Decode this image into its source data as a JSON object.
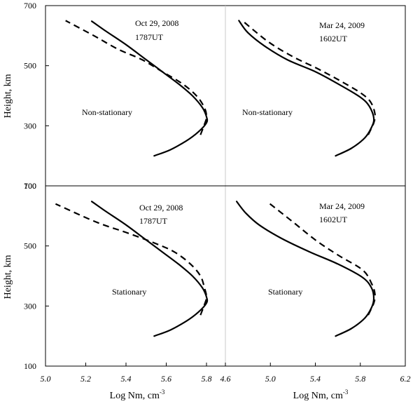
{
  "chart_data": [
    {
      "type": "line",
      "panel": "top-left",
      "annotations": {
        "date": "Oct 29, 2008",
        "time": "1787UT",
        "mode": "Non-stationary"
      },
      "xlim": [
        5.0,
        5.86
      ],
      "ylim": [
        100,
        700
      ],
      "series": [
        {
          "name": "solid",
          "style": "solid",
          "points": [
            [
              5.54,
              200
            ],
            [
              5.62,
              220
            ],
            [
              5.7,
              250
            ],
            [
              5.76,
              280
            ],
            [
              5.8,
              310
            ],
            [
              5.8,
              330
            ],
            [
              5.78,
              360
            ],
            [
              5.73,
              400
            ],
            [
              5.66,
              440
            ],
            [
              5.58,
              480
            ],
            [
              5.5,
              520
            ],
            [
              5.4,
              570
            ],
            [
              5.3,
              615
            ],
            [
              5.23,
              648
            ]
          ]
        },
        {
          "name": "dashed",
          "style": "dashed",
          "points": [
            [
              5.77,
              270
            ],
            [
              5.79,
              305
            ],
            [
              5.8,
              330
            ],
            [
              5.79,
              360
            ],
            [
              5.75,
              400
            ],
            [
              5.68,
              440
            ],
            [
              5.58,
              480
            ],
            [
              5.48,
              520
            ],
            [
              5.36,
              555
            ],
            [
              5.24,
              600
            ],
            [
              5.1,
              650
            ]
          ]
        }
      ]
    },
    {
      "type": "line",
      "panel": "top-right",
      "annotations": {
        "date": "Mar 24, 2009",
        "time": "1602UT",
        "mode": "Non-stationary"
      },
      "xlim": [
        4.6,
        6.2
      ],
      "ylim": [
        100,
        700
      ],
      "series": [
        {
          "name": "solid",
          "style": "solid",
          "points": [
            [
              5.58,
              200
            ],
            [
              5.72,
              225
            ],
            [
              5.84,
              260
            ],
            [
              5.9,
              295
            ],
            [
              5.92,
              325
            ],
            [
              5.88,
              365
            ],
            [
              5.8,
              395
            ],
            [
              5.6,
              440
            ],
            [
              5.4,
              480
            ],
            [
              5.15,
              520
            ],
            [
              4.95,
              565
            ],
            [
              4.8,
              610
            ],
            [
              4.72,
              650
            ]
          ]
        },
        {
          "name": "dashed",
          "style": "dashed",
          "points": [
            [
              5.87,
              270
            ],
            [
              5.92,
              310
            ],
            [
              5.93,
              340
            ],
            [
              5.89,
              380
            ],
            [
              5.8,
              410
            ],
            [
              5.62,
              450
            ],
            [
              5.42,
              490
            ],
            [
              5.2,
              530
            ],
            [
              4.98,
              580
            ],
            [
              4.75,
              650
            ]
          ]
        }
      ]
    },
    {
      "type": "line",
      "panel": "bottom-left",
      "annotations": {
        "date": "Oct 29, 2008",
        "time": "1787UT",
        "mode": "Stationary"
      },
      "xlim": [
        5.0,
        5.86
      ],
      "ylim": [
        100,
        700
      ],
      "series": [
        {
          "name": "solid",
          "style": "solid",
          "points": [
            [
              5.54,
              200
            ],
            [
              5.62,
              220
            ],
            [
              5.7,
              250
            ],
            [
              5.76,
              280
            ],
            [
              5.8,
              310
            ],
            [
              5.8,
              330
            ],
            [
              5.78,
              360
            ],
            [
              5.73,
              400
            ],
            [
              5.66,
              440
            ],
            [
              5.58,
              480
            ],
            [
              5.5,
              520
            ],
            [
              5.4,
              570
            ],
            [
              5.3,
              615
            ],
            [
              5.23,
              648
            ]
          ]
        },
        {
          "name": "dashed",
          "style": "dashed",
          "points": [
            [
              5.77,
              270
            ],
            [
              5.79,
              305
            ],
            [
              5.8,
              330
            ],
            [
              5.79,
              360
            ],
            [
              5.77,
              400
            ],
            [
              5.72,
              440
            ],
            [
              5.64,
              480
            ],
            [
              5.54,
              510
            ],
            [
              5.4,
              545
            ],
            [
              5.25,
              580
            ],
            [
              5.05,
              640
            ]
          ]
        }
      ]
    },
    {
      "type": "line",
      "panel": "bottom-right",
      "annotations": {
        "date": "Mar 24, 2009",
        "time": "1602UT",
        "mode": "Stationary"
      },
      "xlim": [
        4.6,
        6.2
      ],
      "ylim": [
        100,
        700
      ],
      "series": [
        {
          "name": "solid",
          "style": "solid",
          "points": [
            [
              5.58,
              200
            ],
            [
              5.72,
              225
            ],
            [
              5.84,
              260
            ],
            [
              5.9,
              295
            ],
            [
              5.92,
              325
            ],
            [
              5.9,
              360
            ],
            [
              5.82,
              395
            ],
            [
              5.6,
              440
            ],
            [
              5.35,
              480
            ],
            [
              5.1,
              525
            ],
            [
              4.9,
              570
            ],
            [
              4.78,
              610
            ],
            [
              4.7,
              648
            ]
          ]
        },
        {
          "name": "dashed",
          "style": "dashed",
          "points": [
            [
              5.87,
              270
            ],
            [
              5.92,
              310
            ],
            [
              5.93,
              340
            ],
            [
              5.9,
              375
            ],
            [
              5.82,
              420
            ],
            [
              5.6,
              470
            ],
            [
              5.4,
              520
            ],
            [
              5.2,
              580
            ],
            [
              4.98,
              645
            ]
          ]
        }
      ]
    }
  ],
  "axes": {
    "y_label": "Height, km",
    "x_label_prefix": "Log Nm, cm",
    "x_label_sup": "-3",
    "y_ticks": [
      "700",
      "500",
      "300",
      "100"
    ],
    "y_tick_values": [
      700,
      500,
      300,
      100
    ],
    "x_ticks_left": [
      "5.0",
      "5.2",
      "5.4",
      "5.6",
      "5.8"
    ],
    "x_tick_values_left": [
      5.0,
      5.2,
      5.4,
      5.6,
      5.8
    ],
    "x_ticks_right": [
      "4.6",
      "5.0",
      "5.4",
      "5.8",
      "6.2"
    ],
    "x_tick_values_right": [
      4.6,
      5.0,
      5.4,
      5.8,
      6.2
    ]
  },
  "colors": {
    "line": "#000000",
    "grid": "#c8c8c8"
  }
}
